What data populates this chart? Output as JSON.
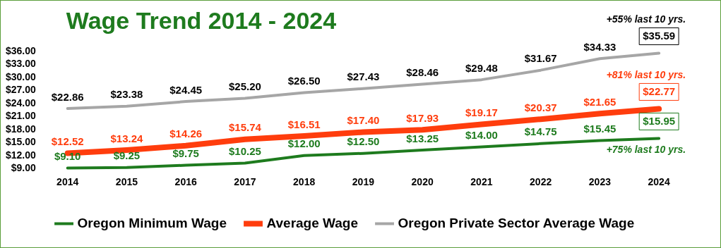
{
  "chart_data": {
    "type": "line",
    "title": "Wage Trend 2014 - 2024",
    "categories": [
      "2014",
      "2015",
      "2016",
      "2017",
      "2018",
      "2019",
      "2020",
      "2021",
      "2022",
      "2023",
      "2024"
    ],
    "series": [
      {
        "name": "Oregon Minimum Wage",
        "color": "#1e7b1e",
        "values": [
          9.1,
          9.25,
          9.75,
          10.25,
          12.0,
          12.5,
          13.25,
          14.0,
          14.75,
          15.45,
          15.95
        ],
        "value_labels": [
          "$9.10",
          "$9.25",
          "$9.75",
          "$10.25",
          "$12.00",
          "$12.50",
          "$13.25",
          "$14.00",
          "$14.75",
          "$15.45",
          "$15.95"
        ]
      },
      {
        "name": "Average Wage",
        "color": "#ff3d0d",
        "values": [
          12.52,
          13.24,
          14.26,
          15.74,
          16.51,
          17.4,
          17.93,
          19.17,
          20.37,
          21.65,
          22.77
        ],
        "value_labels": [
          "$12.52",
          "$13.24",
          "$14.26",
          "$15.74",
          "$16.51",
          "$17.40",
          "$17.93",
          "$19.17",
          "$20.37",
          "$21.65",
          "$22.77"
        ]
      },
      {
        "name": "Oregon Private Sector Average Wage",
        "color": "#a6a6a6",
        "values": [
          22.86,
          23.38,
          24.45,
          25.2,
          26.5,
          27.43,
          28.46,
          29.48,
          31.67,
          34.33,
          35.59
        ],
        "value_labels": [
          "$22.86",
          "$23.38",
          "$24.45",
          "$25.20",
          "$26.50",
          "$27.43",
          "$28.46",
          "$29.48",
          "$31.67",
          "$34.33",
          "$35.59"
        ]
      }
    ],
    "ylim": [
      9,
      36
    ],
    "yticks": [
      {
        "value": 9,
        "label": "$9.00"
      },
      {
        "value": 12,
        "label": "$12.00"
      },
      {
        "value": 15,
        "label": "$15.00"
      },
      {
        "value": 18,
        "label": "$18.00"
      },
      {
        "value": 21,
        "label": "$21.00"
      },
      {
        "value": 24,
        "label": "$24.00"
      },
      {
        "value": 27,
        "label": "$27.00"
      },
      {
        "value": 30,
        "label": "$30.00"
      },
      {
        "value": 33,
        "label": "$33.00"
      },
      {
        "value": 36,
        "label": "$36.00"
      }
    ],
    "annotations": [
      {
        "text": "+55% last 10 yrs.",
        "x": "2024",
        "y": 35.59
      },
      {
        "text": "+81% last 10 yrs.",
        "x": "2024",
        "y": 22.77
      },
      {
        "text": "+75% last 10 yrs.",
        "x": "2024",
        "y": 15.95
      }
    ],
    "grid": false,
    "legend": "bottom",
    "marker": "none",
    "line_style": "solid"
  }
}
